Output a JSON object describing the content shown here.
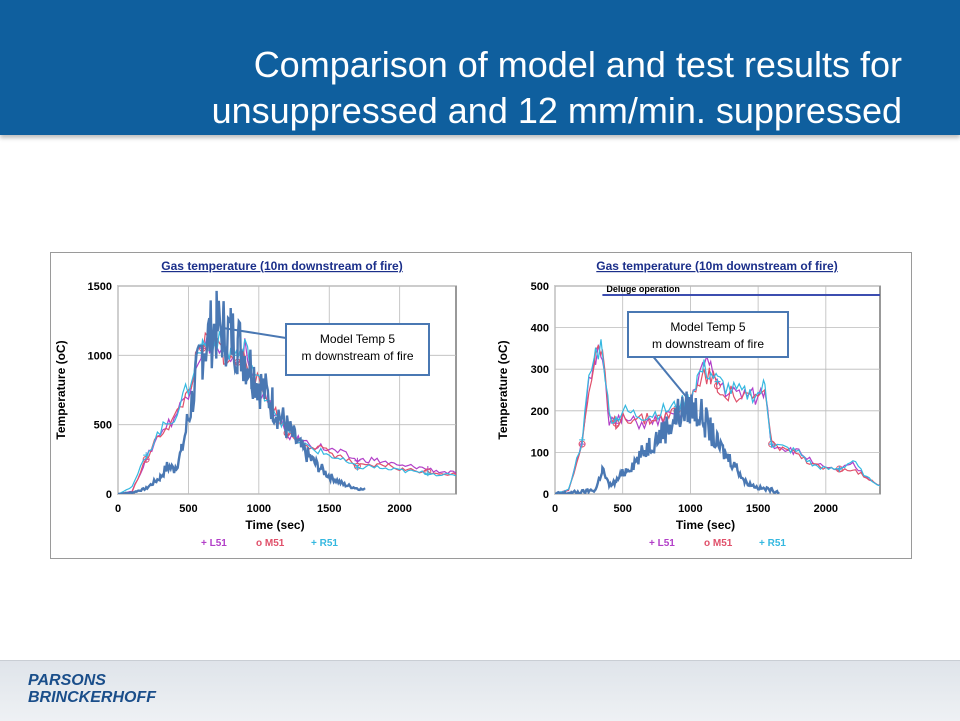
{
  "slide": {
    "title_line1": "Comparison of model and test results for",
    "title_line2": "unsuppressed and 12 mm/min. suppressed"
  },
  "logo": {
    "line1": "PARSONS",
    "line2": "BRINCKERHOFF"
  },
  "colors": {
    "header_bg": "#0f5f9e",
    "model_line": "#4a78b3",
    "L51": "#b23fc8",
    "M51": "#e0506a",
    "R51": "#35b8e0",
    "deluge_line": "#3c4db0"
  },
  "chart_data": [
    {
      "type": "line",
      "title": "Gas temperature (10m downstream of fire)",
      "xlabel": "Time (sec)",
      "ylabel": "Temperature (oC)",
      "xlim": [
        0,
        2400
      ],
      "ylim": [
        0,
        1500
      ],
      "xticks": [
        0,
        500,
        1000,
        1500,
        2000
      ],
      "yticks": [
        0,
        500,
        1000,
        1500
      ],
      "grid": true,
      "legend": [
        "+ L51",
        "o M51",
        "+ R51"
      ],
      "legend_placement": "bottom",
      "annotation": "Model Temp 5 m downstream of fire",
      "series": [
        {
          "name": "Model Temp 5 m downstream of fire",
          "x": [
            0,
            100,
            200,
            300,
            350,
            400,
            450,
            500,
            550,
            600,
            650,
            700,
            750,
            800,
            850,
            900,
            950,
            1000,
            1100,
            1200,
            1300,
            1400,
            1500,
            1600,
            1700,
            1750
          ],
          "y": [
            0,
            10,
            40,
            120,
            200,
            180,
            300,
            550,
            800,
            1050,
            1150,
            1200,
            1180,
            1150,
            1100,
            1000,
            900,
            800,
            650,
            480,
            330,
            220,
            130,
            70,
            40,
            30
          ]
        },
        {
          "name": "L51",
          "x": [
            0,
            100,
            200,
            300,
            400,
            500,
            550,
            600,
            650,
            700,
            750,
            800,
            850,
            900,
            950,
            1000,
            1100,
            1200,
            1300,
            1400,
            1500,
            1600,
            1700,
            1800,
            1900,
            2000,
            2100,
            2200,
            2300,
            2400
          ],
          "y": [
            0,
            20,
            250,
            450,
            550,
            750,
            950,
            1050,
            1100,
            1050,
            1000,
            900,
            950,
            1050,
            850,
            750,
            600,
            430,
            380,
            350,
            320,
            290,
            240,
            250,
            230,
            200,
            200,
            180,
            160,
            150
          ]
        },
        {
          "name": "M51",
          "x": [
            0,
            100,
            200,
            300,
            400,
            500,
            550,
            600,
            650,
            700,
            750,
            800,
            850,
            900,
            950,
            1000,
            1100,
            1200,
            1300,
            1400,
            1500,
            1600,
            1700,
            1800,
            1900,
            2000,
            2100,
            2200,
            2300,
            2400
          ],
          "y": [
            0,
            15,
            250,
            440,
            540,
            740,
            940,
            1050,
            1100,
            1070,
            1020,
            950,
            950,
            1000,
            900,
            780,
            620,
            440,
            380,
            340,
            300,
            260,
            200,
            200,
            210,
            180,
            170,
            160,
            150,
            140
          ]
        },
        {
          "name": "R51",
          "x": [
            0,
            100,
            200,
            300,
            400,
            500,
            550,
            600,
            650,
            700,
            750,
            800,
            850,
            900,
            950,
            1000,
            1100,
            1200,
            1300,
            1400,
            1500,
            1600,
            1700,
            1800,
            1900,
            2000,
            2100,
            2200,
            2300,
            2400
          ],
          "y": [
            0,
            50,
            280,
            460,
            560,
            770,
            960,
            1080,
            1120,
            1100,
            1050,
            1020,
            1000,
            1050,
            920,
            800,
            640,
            460,
            360,
            320,
            280,
            240,
            190,
            200,
            180,
            170,
            160,
            150,
            140,
            130
          ]
        }
      ]
    },
    {
      "type": "line",
      "title": "Gas temperature (10m downstream of fire)",
      "xlabel": "Time (sec)",
      "ylabel": "Temperature (oC)",
      "xlim": [
        0,
        2400
      ],
      "ylim": [
        0,
        500
      ],
      "xticks": [
        0,
        500,
        1000,
        1500,
        2000
      ],
      "yticks": [
        0,
        100,
        200,
        300,
        400,
        500
      ],
      "grid": true,
      "legend": [
        "+ L51",
        "o M51",
        "+ R51"
      ],
      "legend_placement": "bottom",
      "annotation": "Model Temp 5 m downstream of fire",
      "deluge_label": "Deluge operation",
      "deluge_range": [
        350,
        2400
      ],
      "series": [
        {
          "name": "Model Temp 5 m downstream of fire",
          "x": [
            0,
            200,
            300,
            350,
            400,
            450,
            500,
            600,
            700,
            800,
            900,
            1000,
            1050,
            1100,
            1150,
            1200,
            1250,
            1300,
            1350,
            1400,
            1500,
            1600,
            1650
          ],
          "y": [
            0,
            5,
            10,
            60,
            20,
            30,
            50,
            80,
            120,
            150,
            190,
            210,
            200,
            180,
            150,
            120,
            100,
            80,
            60,
            30,
            15,
            10,
            5
          ]
        },
        {
          "name": "L51",
          "x": [
            0,
            100,
            200,
            250,
            300,
            350,
            400,
            450,
            500,
            600,
            700,
            800,
            900,
            1000,
            1050,
            1100,
            1150,
            1200,
            1300,
            1400,
            1500,
            1550,
            1600,
            1700,
            1800,
            1900,
            2000,
            2100,
            2200,
            2300,
            2400
          ],
          "y": [
            0,
            10,
            120,
            260,
            330,
            350,
            180,
            170,
            180,
            170,
            170,
            180,
            190,
            200,
            280,
            310,
            300,
            270,
            240,
            240,
            230,
            250,
            120,
            110,
            100,
            80,
            60,
            60,
            70,
            40,
            20
          ]
        },
        {
          "name": "M51",
          "x": [
            0,
            100,
            200,
            250,
            300,
            350,
            400,
            450,
            500,
            600,
            700,
            800,
            900,
            1000,
            1050,
            1100,
            1150,
            1200,
            1300,
            1400,
            1500,
            1550,
            1600,
            1700,
            1800,
            1900,
            2000,
            2100,
            2200,
            2300,
            2400
          ],
          "y": [
            0,
            10,
            120,
            250,
            320,
            340,
            180,
            170,
            190,
            180,
            180,
            190,
            200,
            220,
            270,
            290,
            280,
            260,
            240,
            230,
            230,
            250,
            120,
            110,
            90,
            70,
            60,
            60,
            60,
            40,
            20
          ]
        },
        {
          "name": "R51",
          "x": [
            0,
            100,
            200,
            250,
            300,
            350,
            400,
            450,
            500,
            600,
            700,
            800,
            900,
            1000,
            1050,
            1100,
            1150,
            1200,
            1300,
            1400,
            1500,
            1550,
            1600,
            1700,
            1800,
            1900,
            2000,
            2100,
            2200,
            2300,
            2400
          ],
          "y": [
            0,
            10,
            130,
            270,
            340,
            360,
            190,
            180,
            200,
            190,
            190,
            200,
            210,
            230,
            280,
            300,
            290,
            270,
            250,
            240,
            240,
            260,
            120,
            110,
            100,
            70,
            60,
            60,
            80,
            40,
            20
          ]
        }
      ]
    }
  ]
}
